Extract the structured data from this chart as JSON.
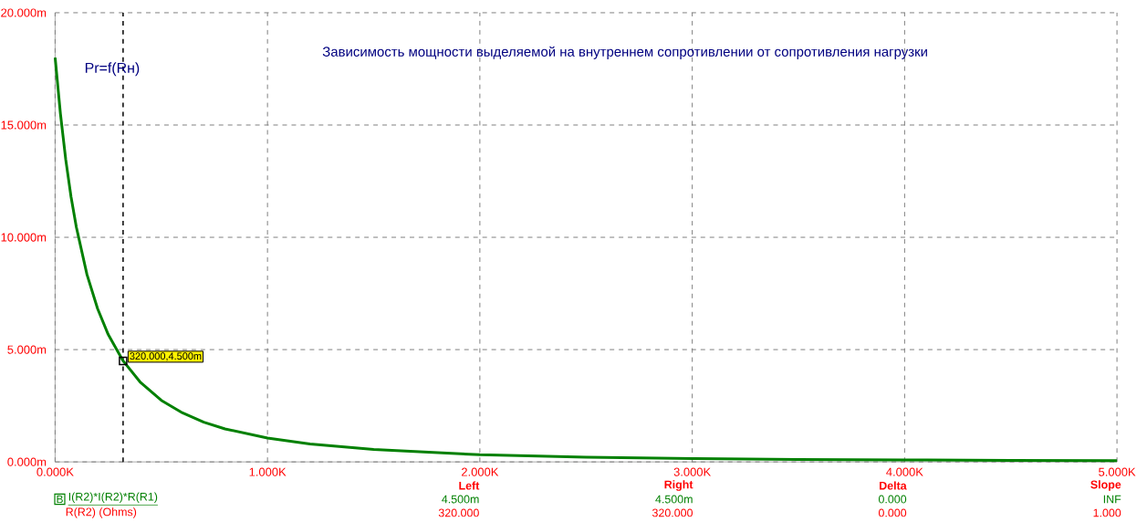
{
  "chart_data": {
    "type": "line",
    "title": "Зависимость мощности выделяемой на внутреннем сопротивлении от сопротивления нагрузки",
    "xlabel": "R(R2) (Ohms)",
    "x": [
      0,
      25,
      50,
      75,
      100,
      150,
      200,
      250,
      320,
      400,
      500,
      600,
      700,
      800,
      1000,
      1200,
      1500,
      2000,
      2500,
      3000,
      3500,
      4000,
      4500,
      5000
    ],
    "series": [
      {
        "name": "I(R2)*I(R2)*R(R1)",
        "color": "#008000",
        "values": [
          18,
          15.5,
          13.46,
          11.8,
          10.45,
          8.34,
          6.82,
          5.67,
          4.5,
          3.56,
          2.74,
          2.18,
          1.77,
          1.47,
          1.06,
          0.8,
          0.55,
          0.32,
          0.21,
          0.15,
          0.11,
          0.09,
          0.07,
          0.06
        ]
      }
    ],
    "xlim": [
      0,
      5000
    ],
    "ylim": [
      0,
      20
    ],
    "xticks": [
      {
        "value": 0,
        "label": "0.000K"
      },
      {
        "value": 1000,
        "label": "1.000K"
      },
      {
        "value": 2000,
        "label": "2.000K"
      },
      {
        "value": 3000,
        "label": "3.000K"
      },
      {
        "value": 4000,
        "label": "4.000K"
      },
      {
        "value": 5000,
        "label": "5.000K"
      }
    ],
    "yticks": [
      {
        "value": 0,
        "label": "0.000m"
      },
      {
        "value": 5,
        "label": "5.000m"
      },
      {
        "value": 10,
        "label": "10.000m"
      },
      {
        "value": 15,
        "label": "15.000m"
      },
      {
        "value": 20,
        "label": "20.000m"
      }
    ],
    "grid": true,
    "legend": "bottom left",
    "marker": "none",
    "line_style": "solid",
    "ref_lines": [
      {
        "axis": "x",
        "value": 320,
        "color": "#000000",
        "line_style": "dashed"
      }
    ],
    "annotations": [
      "Pr=f(Rн)",
      {
        "text": "320.000,4.500m",
        "x": 320,
        "y": 4.5
      },
      "B",
      "Left",
      "Right",
      "Delta",
      "Slope",
      "4.500m",
      "4.500m",
      "0.000",
      "INF",
      "320.000",
      "320.000",
      "0.000",
      "1.000"
    ]
  }
}
